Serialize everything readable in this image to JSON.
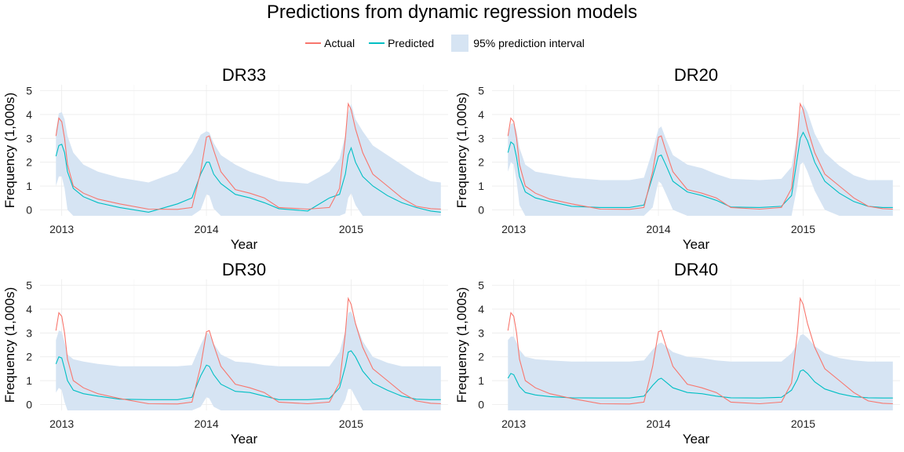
{
  "title": "Predictions from dynamic regression models",
  "legend": {
    "actual_label": "Actual",
    "predicted_label": "Predicted",
    "interval_label": "95% prediction interval"
  },
  "colors": {
    "actual": "#F8766D",
    "predicted": "#00BFC4",
    "interval": "#D6E4F3",
    "grid": "#EBEBEB"
  },
  "chart_data": [
    {
      "type": "line",
      "title": "DR33",
      "xlabel": "Year",
      "ylabel": "Frequency (1,000s)",
      "x_ticks": [
        "2013",
        "2014",
        "2015"
      ],
      "y_ticks": [
        0,
        1,
        2,
        3,
        4,
        5
      ],
      "xlim": [
        2012.85,
        2015.67
      ],
      "ylim": [
        -0.25,
        5.25
      ],
      "grid": true,
      "x": [
        2012.96,
        2012.98,
        2013.0,
        2013.02,
        2013.04,
        2013.08,
        2013.15,
        2013.25,
        2013.4,
        2013.6,
        2013.8,
        2013.9,
        2013.96,
        2014.0,
        2014.02,
        2014.05,
        2014.1,
        2014.2,
        2014.3,
        2014.4,
        2014.5,
        2014.7,
        2014.85,
        2014.92,
        2014.96,
        2014.98,
        2015.0,
        2015.03,
        2015.08,
        2015.15,
        2015.25,
        2015.35,
        2015.45,
        2015.55,
        2015.62
      ],
      "series": [
        {
          "name": "Actual",
          "values": [
            3.1,
            3.85,
            3.7,
            3.0,
            1.9,
            1.0,
            0.7,
            0.45,
            0.25,
            0.03,
            0.02,
            0.1,
            1.6,
            3.05,
            3.1,
            2.5,
            1.6,
            0.85,
            0.7,
            0.5,
            0.1,
            0.03,
            0.1,
            0.9,
            3.0,
            4.45,
            4.2,
            3.4,
            2.4,
            1.5,
            1.0,
            0.5,
            0.15,
            0.05,
            0.03
          ]
        },
        {
          "name": "Predicted",
          "values": [
            2.25,
            2.7,
            2.75,
            2.4,
            1.6,
            0.9,
            0.55,
            0.3,
            0.1,
            -0.1,
            0.25,
            0.5,
            1.5,
            2.0,
            2.0,
            1.5,
            1.1,
            0.65,
            0.5,
            0.3,
            0.05,
            -0.05,
            0.5,
            0.65,
            1.5,
            2.3,
            2.6,
            2.0,
            1.4,
            1.0,
            0.6,
            0.3,
            0.1,
            -0.05,
            -0.1
          ]
        },
        {
          "name": "Upper",
          "values": [
            3.3,
            4.05,
            4.1,
            3.8,
            3.1,
            2.4,
            1.9,
            1.6,
            1.35,
            1.15,
            1.6,
            2.4,
            3.15,
            3.3,
            3.25,
            2.8,
            2.3,
            1.9,
            1.6,
            1.4,
            1.2,
            1.1,
            1.6,
            2.15,
            3.15,
            4.1,
            4.45,
            3.8,
            3.3,
            2.7,
            2.3,
            1.9,
            1.5,
            1.2,
            1.15
          ]
        },
        {
          "name": "Lower",
          "values": [
            1.0,
            1.4,
            1.4,
            0.9,
            0.0,
            -0.25,
            -0.25,
            -0.25,
            -0.25,
            -0.25,
            -0.25,
            -0.25,
            0.0,
            0.65,
            0.6,
            0.05,
            -0.25,
            -0.25,
            -0.25,
            -0.25,
            -0.25,
            -0.25,
            -0.25,
            -0.25,
            -0.15,
            0.5,
            0.7,
            0.2,
            -0.25,
            -0.25,
            -0.25,
            -0.25,
            -0.25,
            -0.25,
            -0.25
          ]
        }
      ]
    },
    {
      "type": "line",
      "title": "DR20",
      "xlabel": "Year",
      "ylabel": "Frequency (1,000s)",
      "x_ticks": [
        "2013",
        "2014",
        "2015"
      ],
      "y_ticks": [
        0,
        1,
        2,
        3,
        4,
        5
      ],
      "xlim": [
        2012.85,
        2015.67
      ],
      "ylim": [
        -0.25,
        5.25
      ],
      "grid": true,
      "x": [
        2012.96,
        2012.98,
        2013.0,
        2013.02,
        2013.04,
        2013.08,
        2013.15,
        2013.25,
        2013.4,
        2013.6,
        2013.8,
        2013.9,
        2013.96,
        2014.0,
        2014.02,
        2014.05,
        2014.1,
        2014.2,
        2014.3,
        2014.4,
        2014.5,
        2014.7,
        2014.85,
        2014.92,
        2014.96,
        2014.98,
        2015.0,
        2015.03,
        2015.08,
        2015.15,
        2015.25,
        2015.35,
        2015.45,
        2015.55,
        2015.62
      ],
      "series": [
        {
          "name": "Actual",
          "values": [
            3.1,
            3.85,
            3.7,
            3.0,
            1.9,
            1.0,
            0.7,
            0.45,
            0.25,
            0.03,
            0.02,
            0.1,
            1.6,
            3.05,
            3.1,
            2.5,
            1.6,
            0.85,
            0.7,
            0.5,
            0.1,
            0.03,
            0.1,
            0.9,
            3.0,
            4.45,
            4.2,
            3.4,
            2.4,
            1.5,
            1.0,
            0.5,
            0.15,
            0.05,
            0.03
          ]
        },
        {
          "name": "Predicted",
          "values": [
            2.4,
            2.85,
            2.75,
            2.2,
            1.4,
            0.75,
            0.5,
            0.35,
            0.15,
            0.1,
            0.1,
            0.2,
            1.4,
            2.25,
            2.3,
            1.9,
            1.2,
            0.75,
            0.6,
            0.4,
            0.12,
            0.1,
            0.15,
            0.6,
            2.2,
            3.0,
            3.25,
            2.9,
            2.0,
            1.2,
            0.7,
            0.35,
            0.15,
            0.1,
            0.1
          ]
        },
        {
          "name": "Upper",
          "values": [
            3.1,
            3.6,
            3.65,
            3.3,
            2.6,
            1.9,
            1.6,
            1.5,
            1.35,
            1.25,
            1.25,
            1.35,
            2.5,
            3.4,
            3.5,
            3.0,
            2.3,
            1.9,
            1.75,
            1.5,
            1.3,
            1.25,
            1.3,
            1.8,
            3.2,
            4.05,
            4.45,
            4.1,
            3.2,
            2.4,
            1.85,
            1.45,
            1.25,
            1.25,
            1.25
          ]
        },
        {
          "name": "Lower",
          "values": [
            1.6,
            2.0,
            1.9,
            1.2,
            0.2,
            -0.25,
            -0.25,
            -0.25,
            -0.25,
            -0.25,
            -0.25,
            -0.25,
            0.1,
            1.2,
            1.1,
            0.7,
            0.0,
            -0.25,
            -0.25,
            -0.25,
            -0.25,
            -0.25,
            -0.25,
            -0.25,
            1.0,
            1.9,
            2.0,
            1.6,
            0.8,
            0.0,
            -0.25,
            -0.25,
            -0.25,
            -0.25,
            -0.25
          ]
        }
      ]
    },
    {
      "type": "line",
      "title": "DR30",
      "xlabel": "Year",
      "ylabel": "Frequency (1,000s)",
      "x_ticks": [
        "2013",
        "2014",
        "2015"
      ],
      "y_ticks": [
        0,
        1,
        2,
        3,
        4,
        5
      ],
      "xlim": [
        2012.85,
        2015.67
      ],
      "ylim": [
        -0.25,
        5.25
      ],
      "grid": true,
      "x": [
        2012.96,
        2012.98,
        2013.0,
        2013.02,
        2013.04,
        2013.08,
        2013.15,
        2013.25,
        2013.4,
        2013.6,
        2013.8,
        2013.9,
        2013.96,
        2014.0,
        2014.02,
        2014.05,
        2014.1,
        2014.2,
        2014.3,
        2014.4,
        2014.5,
        2014.7,
        2014.85,
        2014.92,
        2014.96,
        2014.98,
        2015.0,
        2015.03,
        2015.08,
        2015.15,
        2015.25,
        2015.35,
        2015.45,
        2015.55,
        2015.62
      ],
      "series": [
        {
          "name": "Actual",
          "values": [
            3.1,
            3.85,
            3.7,
            3.0,
            1.9,
            1.0,
            0.7,
            0.45,
            0.25,
            0.03,
            0.02,
            0.1,
            1.6,
            3.05,
            3.1,
            2.5,
            1.6,
            0.85,
            0.7,
            0.5,
            0.1,
            0.03,
            0.1,
            0.9,
            3.0,
            4.45,
            4.2,
            3.4,
            2.4,
            1.5,
            1.0,
            0.5,
            0.15,
            0.05,
            0.03
          ]
        },
        {
          "name": "Predicted",
          "values": [
            1.7,
            2.0,
            1.95,
            1.5,
            1.0,
            0.6,
            0.45,
            0.35,
            0.22,
            0.2,
            0.2,
            0.3,
            1.2,
            1.65,
            1.6,
            1.25,
            0.85,
            0.55,
            0.5,
            0.35,
            0.2,
            0.2,
            0.25,
            0.7,
            1.6,
            2.2,
            2.25,
            2.0,
            1.4,
            0.9,
            0.6,
            0.35,
            0.22,
            0.2,
            0.2
          ]
        },
        {
          "name": "Upper",
          "values": [
            2.7,
            3.1,
            3.05,
            2.6,
            2.1,
            1.9,
            1.8,
            1.7,
            1.6,
            1.6,
            1.6,
            1.65,
            2.5,
            3.0,
            2.95,
            2.55,
            2.1,
            1.8,
            1.75,
            1.65,
            1.6,
            1.6,
            1.6,
            2.2,
            3.1,
            3.85,
            3.9,
            3.45,
            2.65,
            2.0,
            1.75,
            1.6,
            1.6,
            1.6,
            1.6
          ]
        },
        {
          "name": "Lower",
          "values": [
            0.5,
            0.7,
            0.6,
            0.1,
            -0.25,
            -0.25,
            -0.25,
            -0.25,
            -0.25,
            -0.25,
            -0.25,
            -0.25,
            -0.1,
            0.3,
            0.25,
            -0.1,
            -0.25,
            -0.25,
            -0.25,
            -0.25,
            -0.25,
            -0.25,
            -0.25,
            -0.25,
            0.2,
            0.65,
            0.65,
            0.3,
            -0.25,
            -0.25,
            -0.25,
            -0.25,
            -0.25,
            -0.25,
            -0.25
          ]
        }
      ]
    },
    {
      "type": "line",
      "title": "DR40",
      "xlabel": "Year",
      "ylabel": "Frequency (1,000s)",
      "x_ticks": [
        "2013",
        "2014",
        "2015"
      ],
      "y_ticks": [
        0,
        1,
        2,
        3,
        4,
        5
      ],
      "xlim": [
        2012.85,
        2015.67
      ],
      "ylim": [
        -0.25,
        5.25
      ],
      "grid": true,
      "x": [
        2012.96,
        2012.98,
        2013.0,
        2013.02,
        2013.04,
        2013.08,
        2013.15,
        2013.25,
        2013.4,
        2013.6,
        2013.8,
        2013.9,
        2013.96,
        2014.0,
        2014.02,
        2014.05,
        2014.1,
        2014.2,
        2014.3,
        2014.4,
        2014.5,
        2014.7,
        2014.85,
        2014.92,
        2014.96,
        2014.98,
        2015.0,
        2015.03,
        2015.08,
        2015.15,
        2015.25,
        2015.35,
        2015.45,
        2015.55,
        2015.62
      ],
      "series": [
        {
          "name": "Actual",
          "values": [
            3.1,
            3.85,
            3.7,
            3.0,
            1.9,
            1.0,
            0.7,
            0.45,
            0.25,
            0.03,
            0.02,
            0.1,
            1.6,
            3.05,
            3.1,
            2.5,
            1.6,
            0.85,
            0.7,
            0.5,
            0.1,
            0.03,
            0.1,
            0.9,
            3.0,
            4.45,
            4.2,
            3.4,
            2.4,
            1.5,
            1.0,
            0.5,
            0.15,
            0.05,
            0.03
          ]
        },
        {
          "name": "Predicted",
          "values": [
            1.1,
            1.3,
            1.25,
            1.0,
            0.75,
            0.5,
            0.4,
            0.33,
            0.28,
            0.27,
            0.27,
            0.35,
            0.8,
            1.05,
            1.1,
            0.95,
            0.7,
            0.5,
            0.45,
            0.35,
            0.28,
            0.27,
            0.3,
            0.6,
            1.05,
            1.4,
            1.45,
            1.3,
            0.95,
            0.65,
            0.45,
            0.33,
            0.28,
            0.27,
            0.27
          ]
        },
        {
          "name": "Upper",
          "values": [
            2.7,
            2.85,
            2.85,
            2.6,
            2.3,
            2.0,
            1.9,
            1.85,
            1.8,
            1.8,
            1.8,
            1.85,
            2.3,
            2.55,
            2.6,
            2.45,
            2.2,
            2.0,
            1.95,
            1.85,
            1.8,
            1.8,
            1.8,
            2.15,
            2.55,
            2.9,
            2.95,
            2.8,
            2.45,
            2.15,
            1.95,
            1.85,
            1.8,
            1.8,
            1.8
          ]
        },
        {
          "name": "Lower",
          "values": [
            -0.25,
            -0.25,
            -0.25,
            -0.25,
            -0.25,
            -0.25,
            -0.25,
            -0.25,
            -0.25,
            -0.25,
            -0.25,
            -0.25,
            -0.25,
            -0.25,
            -0.25,
            -0.25,
            -0.25,
            -0.25,
            -0.25,
            -0.25,
            -0.25,
            -0.25,
            -0.25,
            -0.25,
            -0.25,
            -0.25,
            -0.25,
            -0.25,
            -0.25,
            -0.25,
            -0.25,
            -0.25,
            -0.25,
            -0.25,
            -0.25
          ]
        }
      ]
    }
  ]
}
